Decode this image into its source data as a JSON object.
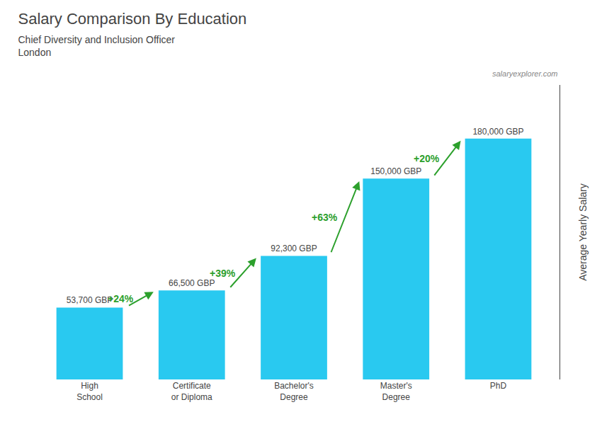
{
  "chart_data": {
    "type": "bar",
    "title": "Salary Comparison By Education",
    "subtitle": [
      "Chief Diversity and Inclusion Officer",
      "London"
    ],
    "ylabel": "Average Yearly Salary",
    "categories": [
      "High\nSchool",
      "Certificate\nor Diploma",
      "Bachelor's\nDegree",
      "Master's\nDegree",
      "PhD"
    ],
    "values": [
      53700,
      66500,
      92300,
      150000,
      180000
    ],
    "value_labels": [
      "53,700 GBP",
      "66,500 GBP",
      "92,300 GBP",
      "150,000 GBP",
      "180,000 GBP"
    ],
    "data_labels": true,
    "color": "#29C9F0",
    "ylim": [
      0,
      220000
    ],
    "tick_labels": "x",
    "grid": false,
    "annotations": [
      {
        "text": "+24%",
        "color": "#2ca02c"
      },
      {
        "text": "+39%",
        "color": "#2ca02c"
      },
      {
        "text": "+63%",
        "color": "#2ca02c"
      },
      {
        "text": "+20%",
        "color": "#2ca02c"
      },
      {
        "text": "salaryexplorer.com"
      }
    ]
  }
}
